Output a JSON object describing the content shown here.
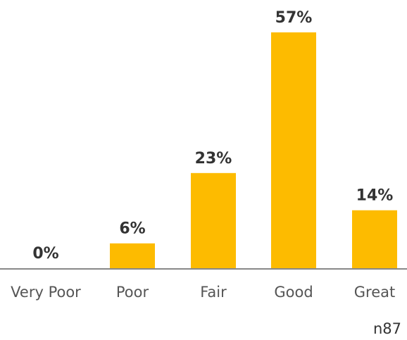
{
  "chart_data": {
    "type": "bar",
    "categories": [
      "Very Poor",
      "Poor",
      "Fair",
      "Good",
      "Great"
    ],
    "values": [
      0,
      6,
      23,
      57,
      14
    ],
    "data_labels": [
      "0%",
      "6%",
      "23%",
      "57%",
      "14%"
    ],
    "ylim": [
      0,
      57
    ],
    "grid": false,
    "bar_color": "#FDBB00",
    "axis_color": "#888888",
    "note": "n87"
  }
}
